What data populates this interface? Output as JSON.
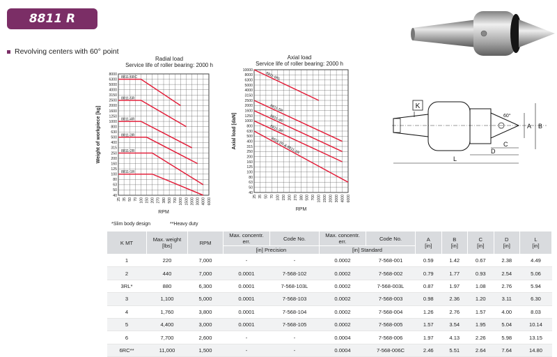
{
  "header": {
    "badge": "8811 R",
    "headline": "Revolving centers with 60° point"
  },
  "colors": {
    "brand": "#7b2e66",
    "series": "#e3203b",
    "grid": "#555555"
  },
  "notes": {
    "slim": "*Slim body design",
    "heavy": "**Heavy duty"
  },
  "drawing": {
    "labels": [
      "K",
      "L",
      "D",
      "C",
      "A",
      "B",
      "60°"
    ]
  },
  "chart_data": [
    {
      "type": "line",
      "title": "Radial load",
      "subtitle": "Service life of roller bearing: 2000 h",
      "xlabel": "RPM",
      "ylabel": "Weight of workpiece [kg]",
      "x_ticks": [
        "25",
        "35",
        "50",
        "70",
        "100",
        "150",
        "200",
        "270",
        "380",
        "500",
        "700",
        "1000",
        "1500",
        "2000",
        "3000",
        "4000",
        "6000"
      ],
      "y_ticks": [
        "8000",
        "6300",
        "5000",
        "4000",
        "3150",
        "2500",
        "2000",
        "1600",
        "1250",
        "1000",
        "800",
        "630",
        "500",
        "400",
        "315",
        "250",
        "200",
        "160",
        "125",
        "100",
        "80",
        "63",
        "50",
        "40"
      ],
      "grid": true,
      "series": [
        {
          "name": "8811-6RC",
          "x": [
            "25",
            "100",
            "1000"
          ],
          "y": [
            "6300",
            "6300",
            "2000"
          ]
        },
        {
          "name": "8811-5R",
          "x": [
            "25",
            "100",
            "1500"
          ],
          "y": [
            "2500",
            "2500",
            "800"
          ]
        },
        {
          "name": "8811-4R",
          "x": [
            "25",
            "100",
            "2000"
          ],
          "y": [
            "1000",
            "1000",
            "315"
          ]
        },
        {
          "name": "8811-3R",
          "x": [
            "25",
            "150",
            "3000"
          ],
          "y": [
            "500",
            "500",
            "160"
          ]
        },
        {
          "name": "8811-2R",
          "x": [
            "25",
            "200",
            "4000"
          ],
          "y": [
            "250",
            "250",
            "63"
          ]
        },
        {
          "name": "8811-1R",
          "x": [
            "25",
            "200",
            "4000"
          ],
          "y": [
            "100",
            "100",
            "40"
          ]
        }
      ]
    },
    {
      "type": "line",
      "title": "Axial load",
      "subtitle": "Service life of roller bearing: 2000 h",
      "xlabel": "RPM",
      "ylabel": "Axial load [daN]",
      "x_ticks": [
        "25",
        "35",
        "50",
        "70",
        "100",
        "150",
        "200",
        "270",
        "380",
        "500",
        "700",
        "1000",
        "1500",
        "2000",
        "3000",
        "4000",
        "6000"
      ],
      "y_ticks": [
        "10000",
        "8000",
        "6300",
        "5000",
        "4000",
        "3150",
        "2500",
        "2000",
        "1600",
        "1250",
        "1000",
        "800",
        "630",
        "500",
        "400",
        "315",
        "250",
        "200",
        "160",
        "125",
        "100",
        "80",
        "63",
        "50",
        "40"
      ],
      "grid": true,
      "series": [
        {
          "name": "8811-6RL",
          "x": [
            "25",
            "1000"
          ],
          "y": [
            "10000",
            "2500"
          ]
        },
        {
          "name": "8811-5R",
          "x": [
            "25",
            "4000"
          ],
          "y": [
            "2500",
            "400"
          ]
        },
        {
          "name": "8811-4R",
          "x": [
            "25",
            "4000"
          ],
          "y": [
            "1600",
            "250"
          ]
        },
        {
          "name": "8811-3R",
          "x": [
            "25",
            "4000"
          ],
          "y": [
            "1000",
            "160"
          ]
        },
        {
          "name": "8811-2R & 8811-1R",
          "x": [
            "25",
            "6000"
          ],
          "y": [
            "630",
            "63"
          ]
        }
      ]
    }
  ],
  "table": {
    "headers": {
      "kmt": "K MT",
      "weight": "Max. weight",
      "weight_unit": "[lbs]",
      "rpm": "RPM",
      "concentr1": "Max. concentr.",
      "err1": "err.",
      "code1": "Code No.",
      "precision": "[in] Precision",
      "concentr2": "Max. concentr.",
      "err2": "err.",
      "code2": "Code No.",
      "standard": "[in] Standard",
      "a": "A",
      "a_unit": "[in]",
      "b": "B",
      "b_unit": "[in]",
      "c": "C",
      "c_unit": "[in]",
      "d": "D",
      "d_unit": "[in]",
      "l": "L",
      "l_unit": "[in]"
    },
    "rows": [
      [
        "1",
        "220",
        "7,000",
        "-",
        "-",
        "0.0002",
        "7-568-001",
        "0.59",
        "1.42",
        "0.67",
        "2.38",
        "4.49"
      ],
      [
        "2",
        "440",
        "7,000",
        "0.0001",
        "7-568-102",
        "0.0002",
        "7-568-002",
        "0.79",
        "1.77",
        "0.93",
        "2.54",
        "5.06"
      ],
      [
        "3RL*",
        "880",
        "6,300",
        "0.0001",
        "7-568-103L",
        "0.0002",
        "7-568-003L",
        "0.87",
        "1.97",
        "1.08",
        "2.76",
        "5.94"
      ],
      [
        "3",
        "1,100",
        "5,000",
        "0.0001",
        "7-568-103",
        "0.0002",
        "7-568-003",
        "0.98",
        "2.36",
        "1.20",
        "3.11",
        "6.30"
      ],
      [
        "4",
        "1,760",
        "3,800",
        "0.0001",
        "7-568-104",
        "0.0002",
        "7-568-004",
        "1.26",
        "2.76",
        "1.57",
        "4.00",
        "8.03"
      ],
      [
        "5",
        "4,400",
        "3,000",
        "0.0001",
        "7-568-105",
        "0.0002",
        "7-568-005",
        "1.57",
        "3.54",
        "1.95",
        "5.04",
        "10.14"
      ],
      [
        "6",
        "7,700",
        "2,600",
        "-",
        "-",
        "0.0004",
        "7-568-006",
        "1.97",
        "4.13",
        "2.26",
        "5.98",
        "13.15"
      ],
      [
        "6RC**",
        "11,000",
        "1,500",
        "-",
        "-",
        "0.0004",
        "7-568-006C",
        "2.46",
        "5.51",
        "2.64",
        "7.64",
        "14.80"
      ]
    ]
  }
}
